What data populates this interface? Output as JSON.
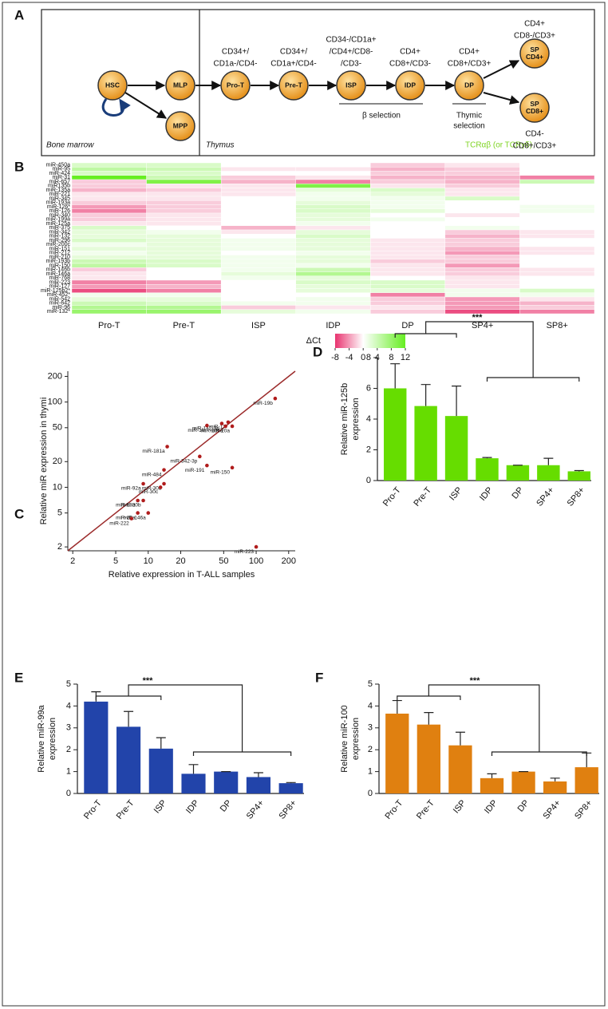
{
  "panel_labels": [
    "A",
    "B",
    "C",
    "D",
    "E",
    "F"
  ],
  "diagram": {
    "nodes": [
      {
        "lines": [
          "HSC"
        ]
      },
      {
        "lines": [
          "MLP"
        ]
      },
      {
        "lines": [
          "MPP"
        ]
      },
      {
        "lines": [
          "Pro-T"
        ]
      },
      {
        "lines": [
          "Pre-T"
        ]
      },
      {
        "lines": [
          "ISP"
        ]
      },
      {
        "lines": [
          "IDP"
        ]
      },
      {
        "lines": [
          "DP"
        ]
      },
      {
        "lines": [
          "SP",
          "CD4+"
        ]
      },
      {
        "lines": [
          "SP",
          "CD8+"
        ]
      }
    ],
    "phenotypes": [
      {
        "lines": [
          "CD34+/",
          "CD1a-/CD4-"
        ]
      },
      {
        "lines": [
          "CD34+/",
          "CD1a+/CD4-"
        ]
      },
      {
        "lines": [
          "CD34-/CD1a+",
          "/CD4+/CD8-",
          "/CD3-"
        ]
      },
      {
        "lines": [
          "CD4+",
          "CD8+/CD3-"
        ]
      },
      {
        "lines": [
          "CD4+",
          "CD8+/CD3+"
        ]
      },
      {
        "lines": [
          "CD4+",
          "CD8-/CD3+"
        ]
      },
      {
        "lines": [
          "CD4-",
          "CD8+/CD3+"
        ]
      }
    ],
    "regions": [
      "Bone marrow",
      "Thymus"
    ],
    "beta_selection": "β selection",
    "thymic_selection": [
      "Thymic",
      "selection"
    ],
    "tcr": "TCRαβ (or TCRγδ)"
  },
  "chart_data": [
    {
      "type": "heatmap",
      "rows": [
        "miR-450a",
        "miR-95",
        "miR-424",
        "miR-31",
        "miR-657",
        "miR135b",
        "miR-135a",
        "miR-221",
        "miR-345",
        "miR-193a",
        "miR-126*",
        "miR-126",
        "miR-340",
        "miR-199a",
        "miR-125a",
        "miR-375",
        "miR-342",
        "miR-132",
        "miR-296",
        "miR-200c",
        "miR-151",
        "miR-212",
        "miR-210",
        "miR-193b",
        "miR-150",
        "miR-146b",
        "miR-146a",
        "miR-768",
        "miR-223",
        "miR-127",
        "miR-125b2*",
        "miR-452*",
        "miR-542",
        "miR-642",
        "miR-96",
        "miR-132*"
      ],
      "columns": [
        "Pro-T",
        "Pre-T",
        "ISP",
        "IDP",
        "DP",
        "SP4+",
        "SP8+"
      ],
      "values": [
        [
          3,
          3,
          0,
          0,
          -2,
          -1,
          0
        ],
        [
          5,
          4,
          -1,
          -1,
          -3,
          -2,
          0
        ],
        [
          3,
          3,
          0,
          0,
          -2,
          -2,
          0
        ],
        [
          12,
          4,
          -2,
          -1,
          -3,
          -3,
          -5
        ],
        [
          -2,
          10,
          -3,
          -5,
          -2,
          -3,
          4
        ],
        [
          -2,
          -1,
          -1,
          10,
          -1,
          -2,
          0
        ],
        [
          -3,
          -2,
          -1,
          2,
          3,
          -1,
          0
        ],
        [
          -1,
          -1,
          -1,
          1,
          2,
          -1,
          0
        ],
        [
          -1,
          -1,
          0,
          1,
          1,
          3,
          0
        ],
        [
          -2,
          -2,
          0,
          2,
          1,
          0,
          0
        ],
        [
          -4,
          -2,
          0,
          3,
          1,
          0,
          1
        ],
        [
          -5,
          -2,
          0,
          3,
          2,
          0,
          1
        ],
        [
          -2,
          -1,
          0,
          2,
          0,
          -1,
          0
        ],
        [
          -2,
          -1,
          0,
          2,
          1,
          0,
          0
        ],
        [
          -1,
          -1,
          0,
          1,
          0,
          0,
          0
        ],
        [
          3,
          0,
          -3,
          -1,
          0,
          1,
          0
        ],
        [
          2,
          1,
          -1,
          2,
          0,
          -2,
          -1
        ],
        [
          2,
          2,
          0,
          3,
          0,
          -3,
          -1
        ],
        [
          3,
          2,
          1,
          2,
          -1,
          -2,
          0
        ],
        [
          1,
          2,
          1,
          2,
          -1,
          -2,
          0
        ],
        [
          2,
          2,
          1,
          2,
          -1,
          -3,
          -1
        ],
        [
          1,
          2,
          0,
          1,
          -1,
          -4,
          -1
        ],
        [
          2,
          2,
          1,
          2,
          -1,
          -2,
          0
        ],
        [
          4,
          3,
          1,
          2,
          -2,
          -2,
          0
        ],
        [
          5,
          3,
          1,
          1,
          -1,
          -4,
          0
        ],
        [
          -2,
          0,
          1,
          4,
          -1,
          -2,
          -1
        ],
        [
          -1,
          0,
          2,
          6,
          -1,
          -2,
          -1
        ],
        [
          -1,
          0,
          1,
          2,
          0,
          -1,
          0
        ],
        [
          -5,
          -4,
          0,
          3,
          3,
          -1,
          0
        ],
        [
          -4,
          -3,
          0,
          2,
          3,
          -1,
          0
        ],
        [
          -7,
          -5,
          0,
          2,
          2,
          1,
          3
        ],
        [
          1,
          1,
          0,
          0,
          -5,
          1,
          1
        ],
        [
          2,
          2,
          0,
          1,
          -2,
          -4,
          -1
        ],
        [
          4,
          3,
          1,
          1,
          -2,
          -4,
          -3
        ],
        [
          6,
          6,
          -2,
          -1,
          -1,
          -4,
          -2
        ],
        [
          8,
          8,
          2,
          1,
          -2,
          -7,
          -5
        ]
      ],
      "colorbar": {
        "label": "ΔCt",
        "lim": [
          -8,
          12
        ],
        "ticks": [
          -8,
          -4,
          0,
          4,
          8,
          12
        ],
        "low_color": "#e8336f",
        "mid_color": "#ffffff",
        "high_color": "#66ee22"
      }
    },
    {
      "type": "scatter",
      "point_labels": [
        "miR-19b",
        "miR-17",
        "miR-142-3p",
        "miR-16",
        "miR-106a",
        "miR-20a",
        "miR-181a",
        "miR-342-3p",
        "miR-484",
        "miR-191",
        "miR-150",
        "miR-92a",
        "miR-30b",
        "miR-30c",
        "miR-19a",
        "miR-20b",
        "miR-26a",
        "miR-146a",
        "miR-222",
        "miR-223"
      ],
      "x": [
        150,
        55,
        48,
        35,
        52,
        60,
        15,
        30,
        14,
        35,
        60,
        9,
        14,
        13,
        8,
        9,
        8,
        10,
        7,
        100
      ],
      "y": [
        110,
        58,
        56,
        53,
        52,
        52,
        30,
        23,
        16,
        18,
        17,
        11,
        11,
        10,
        7,
        7,
        5,
        5,
        4.3,
        2
      ],
      "xlabel": "Relative expression in T-ALL samples",
      "ylabel": "Relative miR expression in thymi",
      "xlim": [
        1.8,
        230
      ],
      "ylim": [
        1.8,
        230
      ],
      "xticks": [
        2,
        5,
        10,
        20,
        50,
        100,
        200
      ],
      "yticks": [
        2,
        5,
        10,
        20,
        50,
        100,
        200
      ],
      "log_x": true,
      "log_y": true,
      "color": "#b01c1c",
      "line_color": "#9b2a2a"
    },
    {
      "type": "bar",
      "categories": [
        "Pro-T",
        "Pre-T",
        "ISP",
        "IDP",
        "DP",
        "SP4+",
        "SP8+"
      ],
      "values": [
        6.0,
        4.85,
        4.2,
        1.45,
        1.0,
        1.0,
        0.6
      ],
      "errors": [
        1.6,
        1.4,
        1.95,
        0.05,
        0,
        0.45,
        0.05
      ],
      "ylabel": [
        "Relative miR-125b",
        "expression"
      ],
      "ylim": [
        0,
        8
      ],
      "yticks": [
        0,
        2,
        4,
        6,
        8
      ],
      "color": "#66dd00",
      "annotation": "***"
    },
    {
      "type": "bar",
      "categories": [
        "Pro-T",
        "Pre-T",
        "ISP",
        "IDP",
        "DP",
        "SP4+",
        "SP8+"
      ],
      "values": [
        4.2,
        3.05,
        2.05,
        0.9,
        1.0,
        0.75,
        0.47
      ],
      "errors": [
        0.45,
        0.7,
        0.5,
        0.42,
        0,
        0.2,
        0.03
      ],
      "ylabel": [
        "Relative miR-99a",
        "expression"
      ],
      "ylim": [
        0,
        5
      ],
      "yticks": [
        0,
        1,
        2,
        3,
        4,
        5
      ],
      "color": "#2244aa",
      "annotation": "***"
    },
    {
      "type": "bar",
      "categories": [
        "Pro-T",
        "Pre-T",
        "ISP",
        "IDP",
        "DP",
        "SP4+",
        "SP8+"
      ],
      "values": [
        3.65,
        3.15,
        2.2,
        0.7,
        1.0,
        0.55,
        1.2
      ],
      "errors": [
        0.6,
        0.55,
        0.6,
        0.2,
        0,
        0.15,
        0.65
      ],
      "ylabel": [
        "Relative miR-100",
        "expression"
      ],
      "ylim": [
        0,
        5
      ],
      "yticks": [
        0,
        1,
        2,
        3,
        4,
        5
      ],
      "color": "#e08010",
      "annotation": "***"
    }
  ]
}
